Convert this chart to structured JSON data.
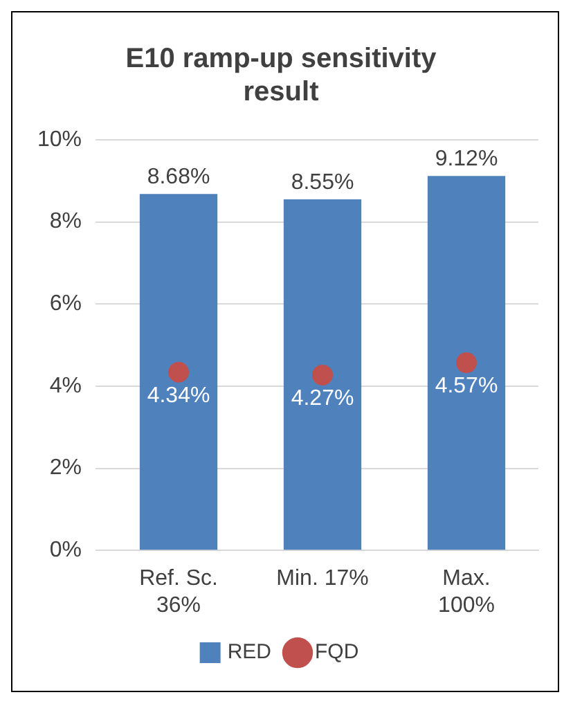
{
  "chart_data": {
    "type": "bar",
    "title": "E10 ramp-up sensitivity result",
    "categories": [
      "Ref. Sc. 36%",
      "Min. 17%",
      "Max. 100%"
    ],
    "series": [
      {
        "name": "RED",
        "color": "#4f81bd",
        "values": [
          8.68,
          8.55,
          9.12
        ],
        "value_labels": [
          "8.68%",
          "8.55%",
          "9.12%"
        ]
      },
      {
        "name": "FQD",
        "type": "scatter",
        "color": "#c0504d",
        "x": [
          "Ref. Sc. 36%",
          "Min. 17%",
          "Max. 100%"
        ],
        "values": [
          4.34,
          4.27,
          4.57
        ],
        "value_labels": [
          "4.34%",
          "4.27%",
          "4.57%"
        ]
      }
    ],
    "ylim": [
      0,
      10
    ],
    "yticks": [
      {
        "value": 0,
        "label": "0%"
      },
      {
        "value": 2,
        "label": "2%"
      },
      {
        "value": 4,
        "label": "4%"
      },
      {
        "value": 6,
        "label": "6%"
      },
      {
        "value": 8,
        "label": "8%"
      },
      {
        "value": 10,
        "label": "10%"
      }
    ],
    "grid": "y",
    "legend": "bottom",
    "marker": "circle"
  }
}
